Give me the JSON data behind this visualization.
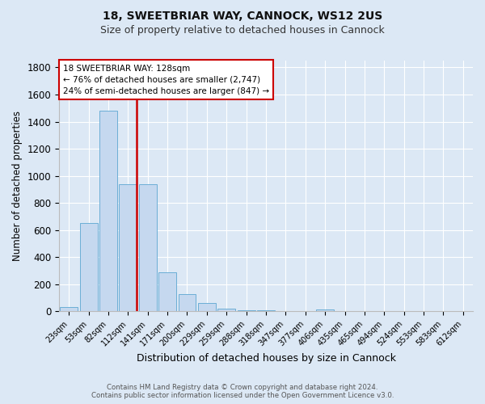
{
  "title": "18, SWEETBRIAR WAY, CANNOCK, WS12 2US",
  "subtitle": "Size of property relative to detached houses in Cannock",
  "xlabel": "Distribution of detached houses by size in Cannock",
  "ylabel": "Number of detached properties",
  "footnote1": "Contains HM Land Registry data © Crown copyright and database right 2024.",
  "footnote2": "Contains public sector information licensed under the Open Government Licence v3.0.",
  "bin_labels": [
    "23sqm",
    "53sqm",
    "82sqm",
    "112sqm",
    "141sqm",
    "171sqm",
    "200sqm",
    "229sqm",
    "259sqm",
    "288sqm",
    "318sqm",
    "347sqm",
    "377sqm",
    "406sqm",
    "435sqm",
    "465sqm",
    "494sqm",
    "524sqm",
    "553sqm",
    "583sqm",
    "612sqm"
  ],
  "bar_heights": [
    35,
    650,
    1480,
    940,
    940,
    290,
    130,
    60,
    20,
    10,
    8,
    5,
    3,
    15,
    0,
    0,
    0,
    0,
    0,
    0,
    0
  ],
  "bar_color": "#c5d8ef",
  "bar_edgecolor": "#6baed6",
  "ylim": [
    0,
    1850
  ],
  "yticks": [
    0,
    200,
    400,
    600,
    800,
    1000,
    1200,
    1400,
    1600,
    1800
  ],
  "vline_color": "#cc0000",
  "annotation_line1": "18 SWEETBRIAR WAY: 128sqm",
  "annotation_line2": "← 76% of detached houses are smaller (2,747)",
  "annotation_line3": "24% of semi-detached houses are larger (847) →",
  "annotation_box_color": "#ffffff",
  "annotation_box_edgecolor": "#cc0000",
  "bg_color": "#dce8f5",
  "grid_color": "#ffffff",
  "vline_position": 3.43,
  "title_fontsize": 10,
  "subtitle_fontsize": 9
}
